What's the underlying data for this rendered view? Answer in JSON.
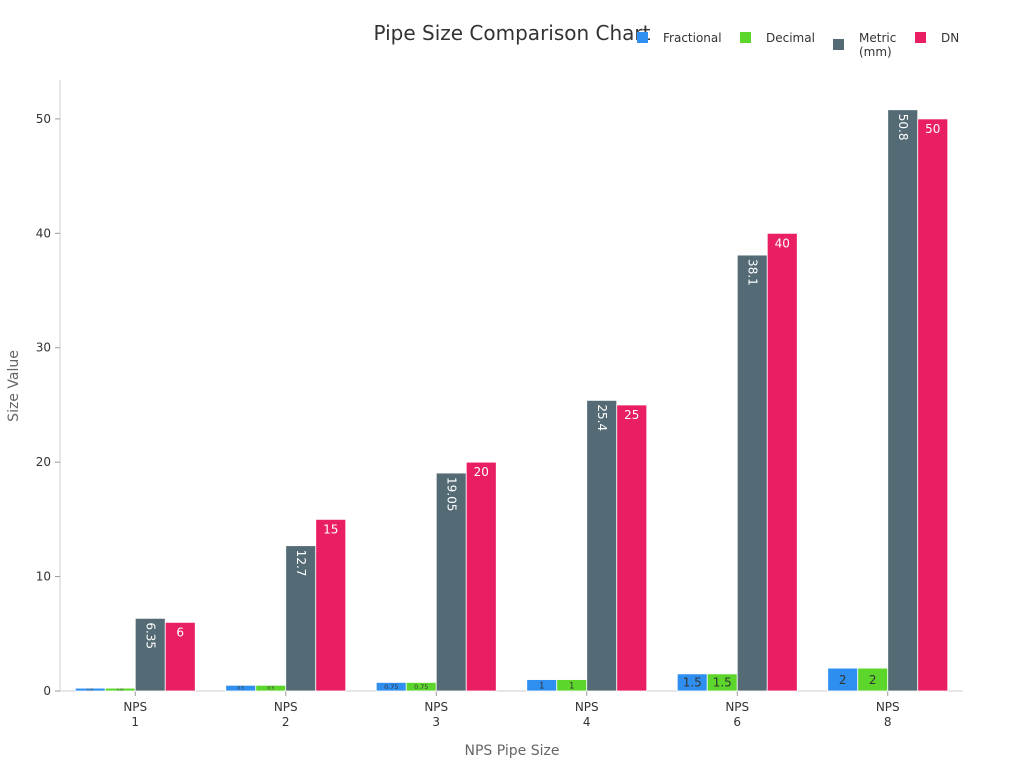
{
  "chart_data": {
    "type": "bar",
    "title": "Pipe Size Comparison Chart",
    "xlabel": "NPS Pipe Size",
    "ylabel": "Size Value",
    "categories": [
      [
        "NPS",
        "1"
      ],
      [
        "NPS",
        "2"
      ],
      [
        "NPS",
        "3"
      ],
      [
        "NPS",
        "4"
      ],
      [
        "NPS",
        "6"
      ],
      [
        "NPS",
        "8"
      ]
    ],
    "ylim": [
      0,
      53.4
    ],
    "yticks": [
      0,
      10,
      20,
      30,
      40,
      50
    ],
    "grid": false,
    "legend_position": "top-right",
    "series": [
      {
        "name": "Fractional",
        "color": "#2f8ff0",
        "values": [
          0.25,
          0.5,
          0.75,
          1,
          1.5,
          2
        ],
        "labels": [
          "0.25",
          "0.5",
          "0.75",
          "1",
          "1.5",
          "2"
        ],
        "label_style": "horizontal-dark"
      },
      {
        "name": "Decimal",
        "color": "#5dd62c",
        "values": [
          0.25,
          0.5,
          0.75,
          1,
          1.5,
          2
        ],
        "labels": [
          "0.25",
          "0.5",
          "0.75",
          "1",
          "1.5",
          "2"
        ],
        "label_style": "horizontal-dark"
      },
      {
        "name": "Metric\n(mm)",
        "color": "#546b75",
        "values": [
          6.35,
          12.7,
          19.05,
          25.4,
          38.1,
          50.8
        ],
        "labels": [
          "6.35",
          "12.7",
          "19.05",
          "25.4",
          "38.1",
          "50.8"
        ],
        "label_style": "rotated-white"
      },
      {
        "name": "DN",
        "color": "#e91e63",
        "values": [
          6,
          15,
          20,
          25,
          40,
          50
        ],
        "labels": [
          "6",
          "15",
          "20",
          "25",
          "40",
          "50"
        ],
        "label_style": "horizontal-white"
      }
    ]
  }
}
